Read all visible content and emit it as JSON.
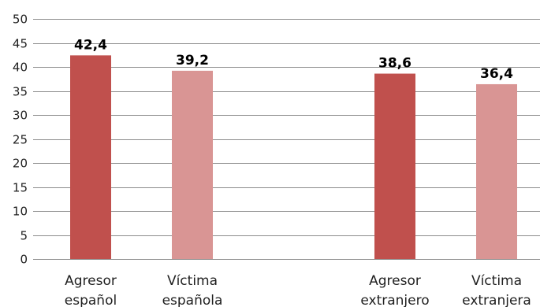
{
  "chart_data": {
    "type": "bar",
    "categories": [
      [
        "Agresor",
        "español"
      ],
      [
        "Víctima",
        "española"
      ],
      [
        "Agresor",
        "extranjero"
      ],
      [
        "Víctima",
        "extranjera"
      ]
    ],
    "values": [
      42.4,
      39.2,
      38.6,
      36.4
    ],
    "data_labels": [
      "42,4",
      "39,2",
      "38,6",
      "36,4"
    ],
    "bar_colors": [
      "#c0504d",
      "#d99594",
      "#c0504d",
      "#d99594"
    ],
    "ylim": [
      0,
      50
    ],
    "yticks": [
      0,
      5,
      10,
      15,
      20,
      25,
      30,
      35,
      40,
      45,
      50
    ],
    "grid": true,
    "title": "",
    "xlabel": "",
    "ylabel": ""
  }
}
